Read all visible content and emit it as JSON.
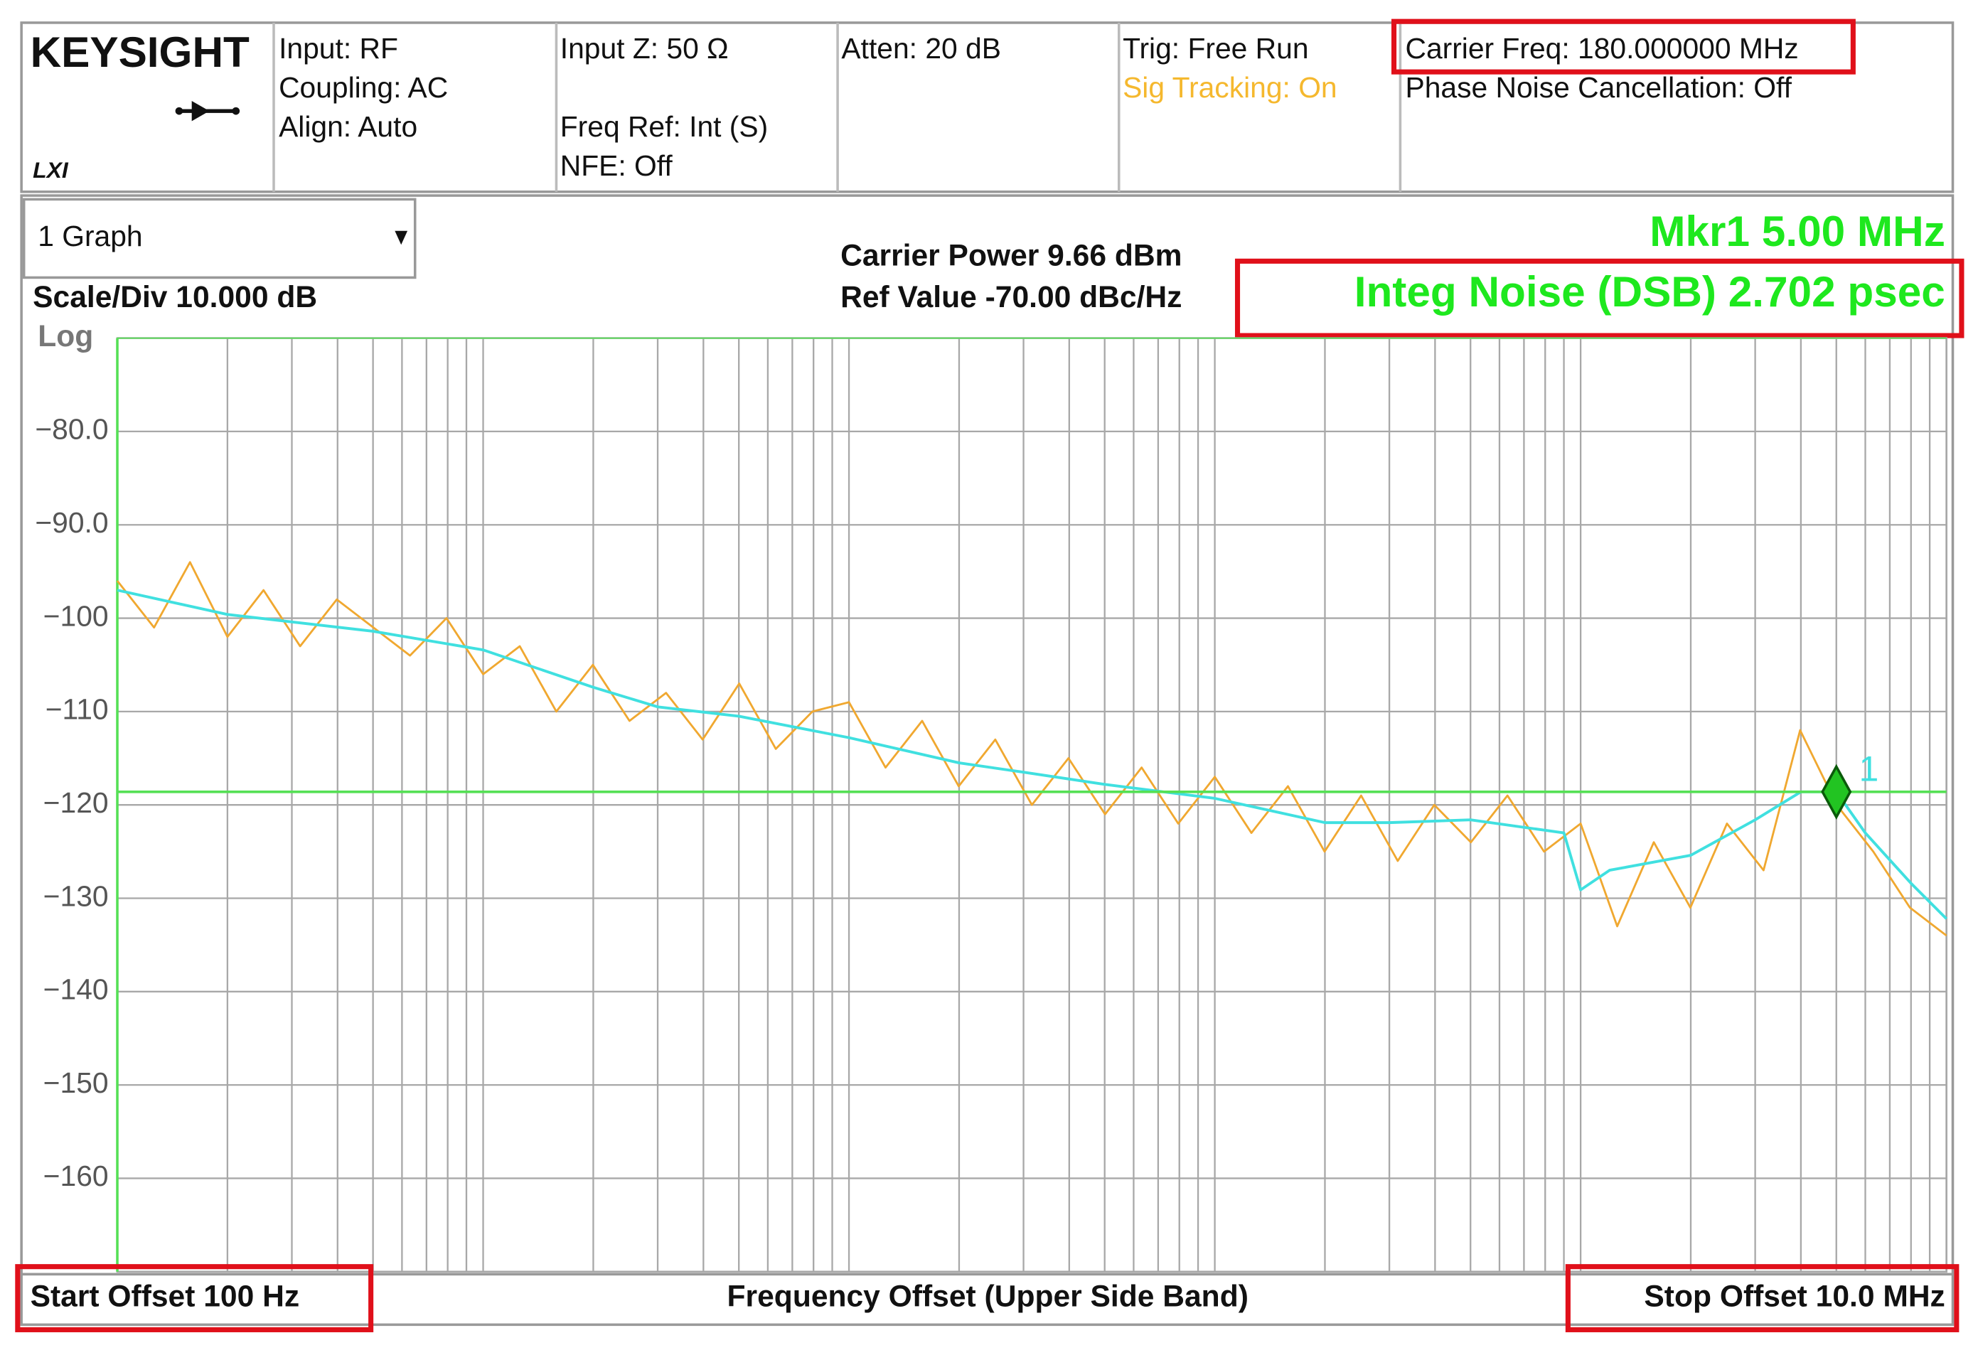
{
  "header": {
    "logo": "KEYSIGHT",
    "lxi": "LXI",
    "columns": [
      [
        "Input: RF",
        "Coupling: AC",
        "Align: Auto"
      ],
      [
        "Input Z: 50 Ω",
        "Freq Ref: Int (S)",
        "NFE: Off"
      ],
      [
        "Atten: 20 dB"
      ],
      [
        "Trig: Free Run",
        "Sig Tracking: On"
      ],
      [
        "Carrier Freq: 180.000000 MHz",
        "Phase Noise Cancellation: Off"
      ]
    ]
  },
  "panel": {
    "graph_select": "1 Graph",
    "scale": "Scale/Div 10.000 dB",
    "scale_type": "Log",
    "carrier_power": "Carrier Power 9.66 dBm",
    "ref_value": "Ref Value -70.00 dBc/Hz",
    "marker_readout": "Mkr1  5.00 MHz",
    "integ_noise": "Integ Noise (DSB)  2.702 psec"
  },
  "footer": {
    "start": "Start Offset 100 Hz",
    "axis": "Frequency Offset (Upper Side Band)",
    "stop": "Stop Offset 10.0 MHz"
  },
  "chart_data": {
    "type": "line",
    "xscale": "log",
    "xlim": [
      100,
      10000000
    ],
    "ylim": [
      -170,
      -70
    ],
    "grid": true,
    "xticks": [
      100,
      200,
      300,
      400,
      500,
      600,
      700,
      800,
      900,
      1000,
      2000,
      3000,
      4000,
      5000,
      6000,
      7000,
      8000,
      9000,
      10000,
      20000,
      30000,
      40000,
      50000,
      60000,
      70000,
      80000,
      90000,
      100000,
      200000,
      300000,
      400000,
      500000,
      600000,
      700000,
      800000,
      900000,
      1000000,
      2000000,
      3000000,
      4000000,
      5000000,
      6000000,
      7000000,
      8000000,
      9000000,
      10000000
    ],
    "yticks": [
      {
        "value": -80,
        "label": "−80.0"
      },
      {
        "value": -90,
        "label": "−90.0"
      },
      {
        "value": -100,
        "label": "−100"
      },
      {
        "value": -110,
        "label": "−110"
      },
      {
        "value": -120,
        "label": "−120"
      },
      {
        "value": -130,
        "label": "−130"
      },
      {
        "value": -140,
        "label": "−140"
      },
      {
        "value": -150,
        "label": "−150"
      },
      {
        "value": -160,
        "label": "−160"
      }
    ],
    "series": [
      {
        "color": "#f0a830",
        "x": [
          100,
          126,
          158,
          200,
          251,
          316,
          398,
          501,
          631,
          794,
          1000,
          1259,
          1585,
          1995,
          2512,
          3162,
          3981,
          5012,
          6310,
          7943,
          10000,
          12589,
          15849,
          19953,
          25119,
          31623,
          39811,
          50119,
          63096,
          79433,
          100000,
          125893,
          158489,
          199526,
          251189,
          316228,
          398107,
          501187,
          630957,
          794328,
          1000000,
          1258925,
          1584893,
          1995262,
          2511886,
          3162278,
          3981072,
          5011872,
          6309573,
          7943282,
          10000000
        ],
        "values": [
          -96,
          -101,
          -94,
          -102,
          -97,
          -103,
          -98,
          -101,
          -104,
          -100,
          -106,
          -103,
          -110,
          -105,
          -111,
          -108,
          -113,
          -107,
          -114,
          -110,
          -109,
          -116,
          -111,
          -118,
          -113,
          -120,
          -115,
          -121,
          -116,
          -122,
          -117,
          -123,
          -118,
          -125,
          -119,
          -126,
          -120,
          -124,
          -119,
          -125,
          -122,
          -133,
          -124,
          -131,
          -122,
          -127,
          -112,
          -120,
          -125,
          -131,
          -134
        ]
      },
      {
        "color": "#40e0e0",
        "x": [
          100,
          200,
          300,
          500,
          1000,
          2000,
          3000,
          5000,
          10000,
          20000,
          30000,
          50000,
          100000,
          200000,
          300000,
          500000,
          900000,
          1000000,
          1200000,
          2000000,
          3000000,
          4000000,
          5000000,
          6000000,
          8000000,
          10000000
        ],
        "values": [
          -97,
          -99.6,
          -100.4,
          -101.4,
          -103.4,
          -107.4,
          -109.5,
          -110.5,
          -112.8,
          -115.5,
          -116.5,
          -117.8,
          -119.3,
          -121.9,
          -121.9,
          -121.6,
          -123,
          -129.1,
          -127,
          -125.4,
          -121.6,
          -118.6,
          -118.6,
          -123,
          -128.4,
          -132.2
        ]
      }
    ],
    "marker": {
      "label": "1",
      "x": 5000000,
      "value": -118.6,
      "color": "#22c422",
      "text_color": "#40e0e0"
    }
  }
}
